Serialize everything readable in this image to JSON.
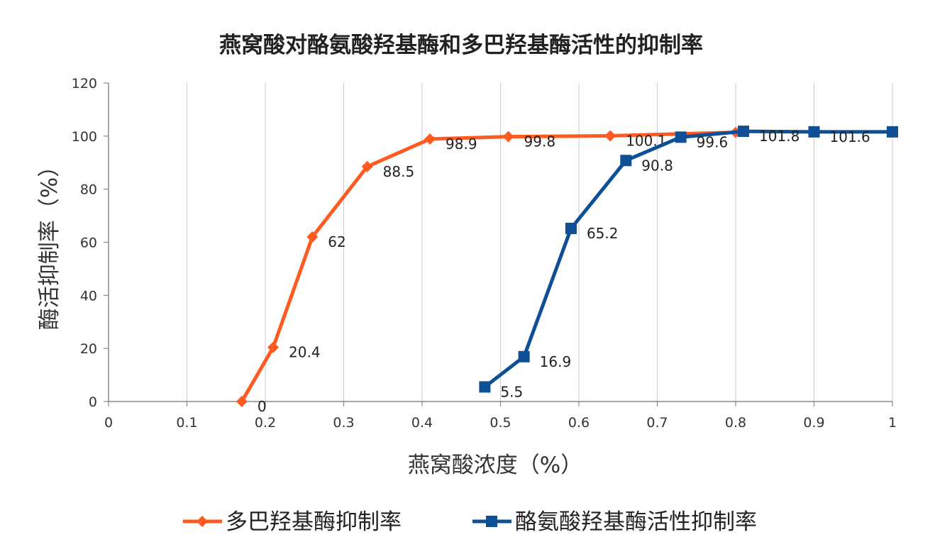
{
  "chart_data": {
    "type": "line",
    "title": "燕窝酸对酪氨酸羟基酶和多巴羟基酶活性的抑制率",
    "xlabel": "燕窝酸浓度（%）",
    "ylabel": "酶活抑制率（%）",
    "xlim": [
      0,
      1
    ],
    "ylim": [
      0,
      120
    ],
    "x_ticks": [
      "0",
      "0.1",
      "0.2",
      "0.3",
      "0.4",
      "0.5",
      "0.6",
      "0.7",
      "0.8",
      "0.9",
      "1"
    ],
    "y_ticks": [
      "0",
      "20",
      "40",
      "60",
      "80",
      "100",
      "120"
    ],
    "grid": "vertical",
    "legend_position": "bottom",
    "series": [
      {
        "name": "多巴羟基酶抑制率",
        "color": "#ff5a1f",
        "marker": "diamond",
        "x": [
          0.17,
          0.21,
          0.26,
          0.33,
          0.41,
          0.51,
          0.64,
          0.8
        ],
        "y": [
          0,
          20.4,
          62,
          88.5,
          98.9,
          99.8,
          100.1,
          101.4
        ],
        "labels": [
          "0",
          "20.4",
          "62",
          "88.5",
          "98.9",
          "99.8",
          "100.1",
          ""
        ]
      },
      {
        "name": "酪氨酸羟基酶活性抑制率",
        "color": "#0e4f96",
        "marker": "square",
        "x": [
          0.48,
          0.53,
          0.59,
          0.66,
          0.73,
          0.81,
          0.9,
          1.0
        ],
        "y": [
          5.5,
          16.9,
          65.2,
          90.8,
          99.6,
          101.8,
          101.6,
          101.6
        ],
        "labels": [
          "5.5",
          "16.9",
          "65.2",
          "90.8",
          "99.6",
          "101.8",
          "101.6",
          ""
        ]
      }
    ]
  }
}
